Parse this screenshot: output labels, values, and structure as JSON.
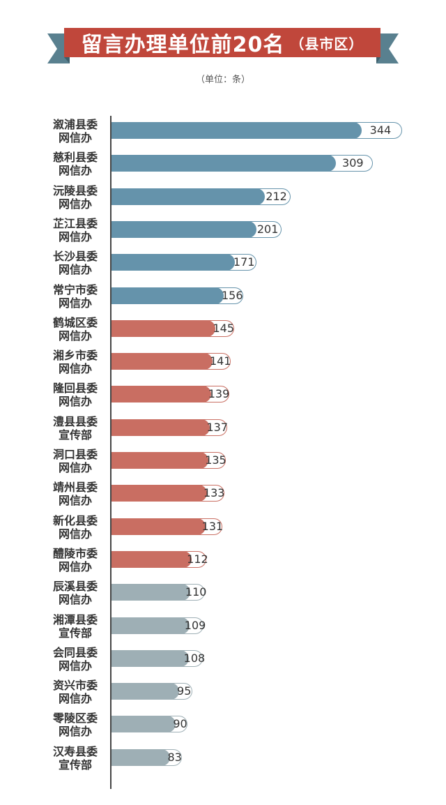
{
  "header": {
    "title": "留言办理单位前20名",
    "title_suffix": "（县市区）",
    "unit": "（单位：条）"
  },
  "colors": {
    "banner": "#c0473b",
    "banner_fold": "#59808f",
    "blue": "#6593ab",
    "red": "#c96e62",
    "gray": "#9eafb5"
  },
  "chart_data": {
    "type": "bar",
    "orientation": "horizontal",
    "title": "留言办理单位前20名（县市区）",
    "unit": "条",
    "categories": [
      "溆浦县委网信办",
      "慈利县委网信办",
      "沅陵县委网信办",
      "芷江县委网信办",
      "长沙县委网信办",
      "常宁市委网信办",
      "鹤城区委网信办",
      "湘乡市委网信办",
      "隆回县委网信办",
      "澧县县委宣传部",
      "洞口县委网信办",
      "靖州县委网信办",
      "新化县委网信办",
      "醴陵市委网信办",
      "辰溪县委网信办",
      "湘潭县委宣传部",
      "会同县委网信办",
      "资兴市委网信办",
      "零陵区委网信办",
      "汉寿县委宣传部"
    ],
    "label_lines": [
      [
        "溆浦县委",
        "网信办"
      ],
      [
        "慈利县委",
        "网信办"
      ],
      [
        "沅陵县委",
        "网信办"
      ],
      [
        "芷江县委",
        "网信办"
      ],
      [
        "长沙县委",
        "网信办"
      ],
      [
        "常宁市委",
        "网信办"
      ],
      [
        "鹤城区委",
        "网信办"
      ],
      [
        "湘乡市委",
        "网信办"
      ],
      [
        "隆回县委",
        "网信办"
      ],
      [
        "澧县县委",
        "宣传部"
      ],
      [
        "洞口县委",
        "网信办"
      ],
      [
        "靖州县委",
        "网信办"
      ],
      [
        "新化县委",
        "网信办"
      ],
      [
        "醴陵市委",
        "网信办"
      ],
      [
        "辰溪县委",
        "网信办"
      ],
      [
        "湘潭县委",
        "宣传部"
      ],
      [
        "会同县委",
        "网信办"
      ],
      [
        "资兴市委",
        "网信办"
      ],
      [
        "零陵区委",
        "网信办"
      ],
      [
        "汉寿县委",
        "宣传部"
      ]
    ],
    "values": [
      344,
      309,
      212,
      201,
      171,
      156,
      145,
      141,
      139,
      137,
      135,
      133,
      131,
      112,
      110,
      109,
      108,
      95,
      90,
      83
    ],
    "color_groups": [
      "blue",
      "blue",
      "blue",
      "blue",
      "blue",
      "blue",
      "red",
      "red",
      "red",
      "red",
      "red",
      "red",
      "red",
      "red",
      "gray",
      "gray",
      "gray",
      "gray",
      "gray",
      "gray"
    ]
  }
}
